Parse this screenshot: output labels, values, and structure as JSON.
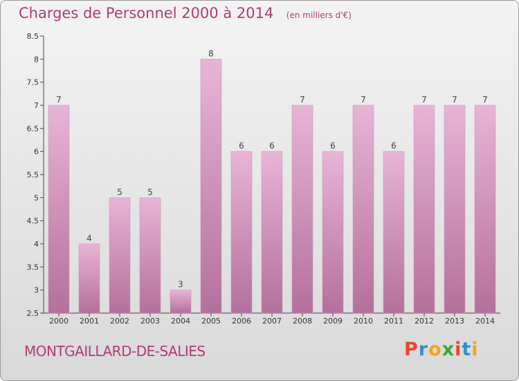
{
  "header": {
    "title": "Charges de Personnel 2000 à 2014",
    "subtitle": "(en milliers d'€)"
  },
  "footer": {
    "commune": "MONTGAILLARD-DE-SALIES",
    "logo_text": "Proxiti",
    "logo_colors": [
      "#e8452c",
      "#2e8fd6",
      "#f2a31b",
      "#3aa53a",
      "#e8452c",
      "#2e8fd6",
      "#f2a31b"
    ]
  },
  "colors": {
    "title": "#b03a7a",
    "bar_top": "#e8b4d6",
    "bar_bottom": "#b4709c",
    "axis": "#444444"
  },
  "chart_data": {
    "type": "bar",
    "title": "Charges de Personnel 2000 à 2014",
    "subtitle": "(en milliers d'€)",
    "categories": [
      "2000",
      "2001",
      "2002",
      "2003",
      "2004",
      "2005",
      "2006",
      "2007",
      "2008",
      "2009",
      "2010",
      "2011",
      "2012",
      "2013",
      "2014"
    ],
    "values": [
      7,
      4,
      5,
      5,
      3,
      8,
      6,
      6,
      7,
      6,
      7,
      6,
      7,
      7,
      7
    ],
    "data_labels": [
      "7",
      "4",
      "5",
      "5",
      "3",
      "8",
      "6",
      "6",
      "7",
      "6",
      "7",
      "6",
      "7",
      "7",
      "7"
    ],
    "ylim": [
      2.5,
      8.5
    ],
    "yticks": [
      "2.5",
      "3",
      "3.5",
      "4",
      "4.5",
      "5",
      "5.5",
      "6",
      "6.5",
      "7",
      "7.5",
      "8",
      "8.5"
    ],
    "grid": false,
    "legend": "none"
  }
}
